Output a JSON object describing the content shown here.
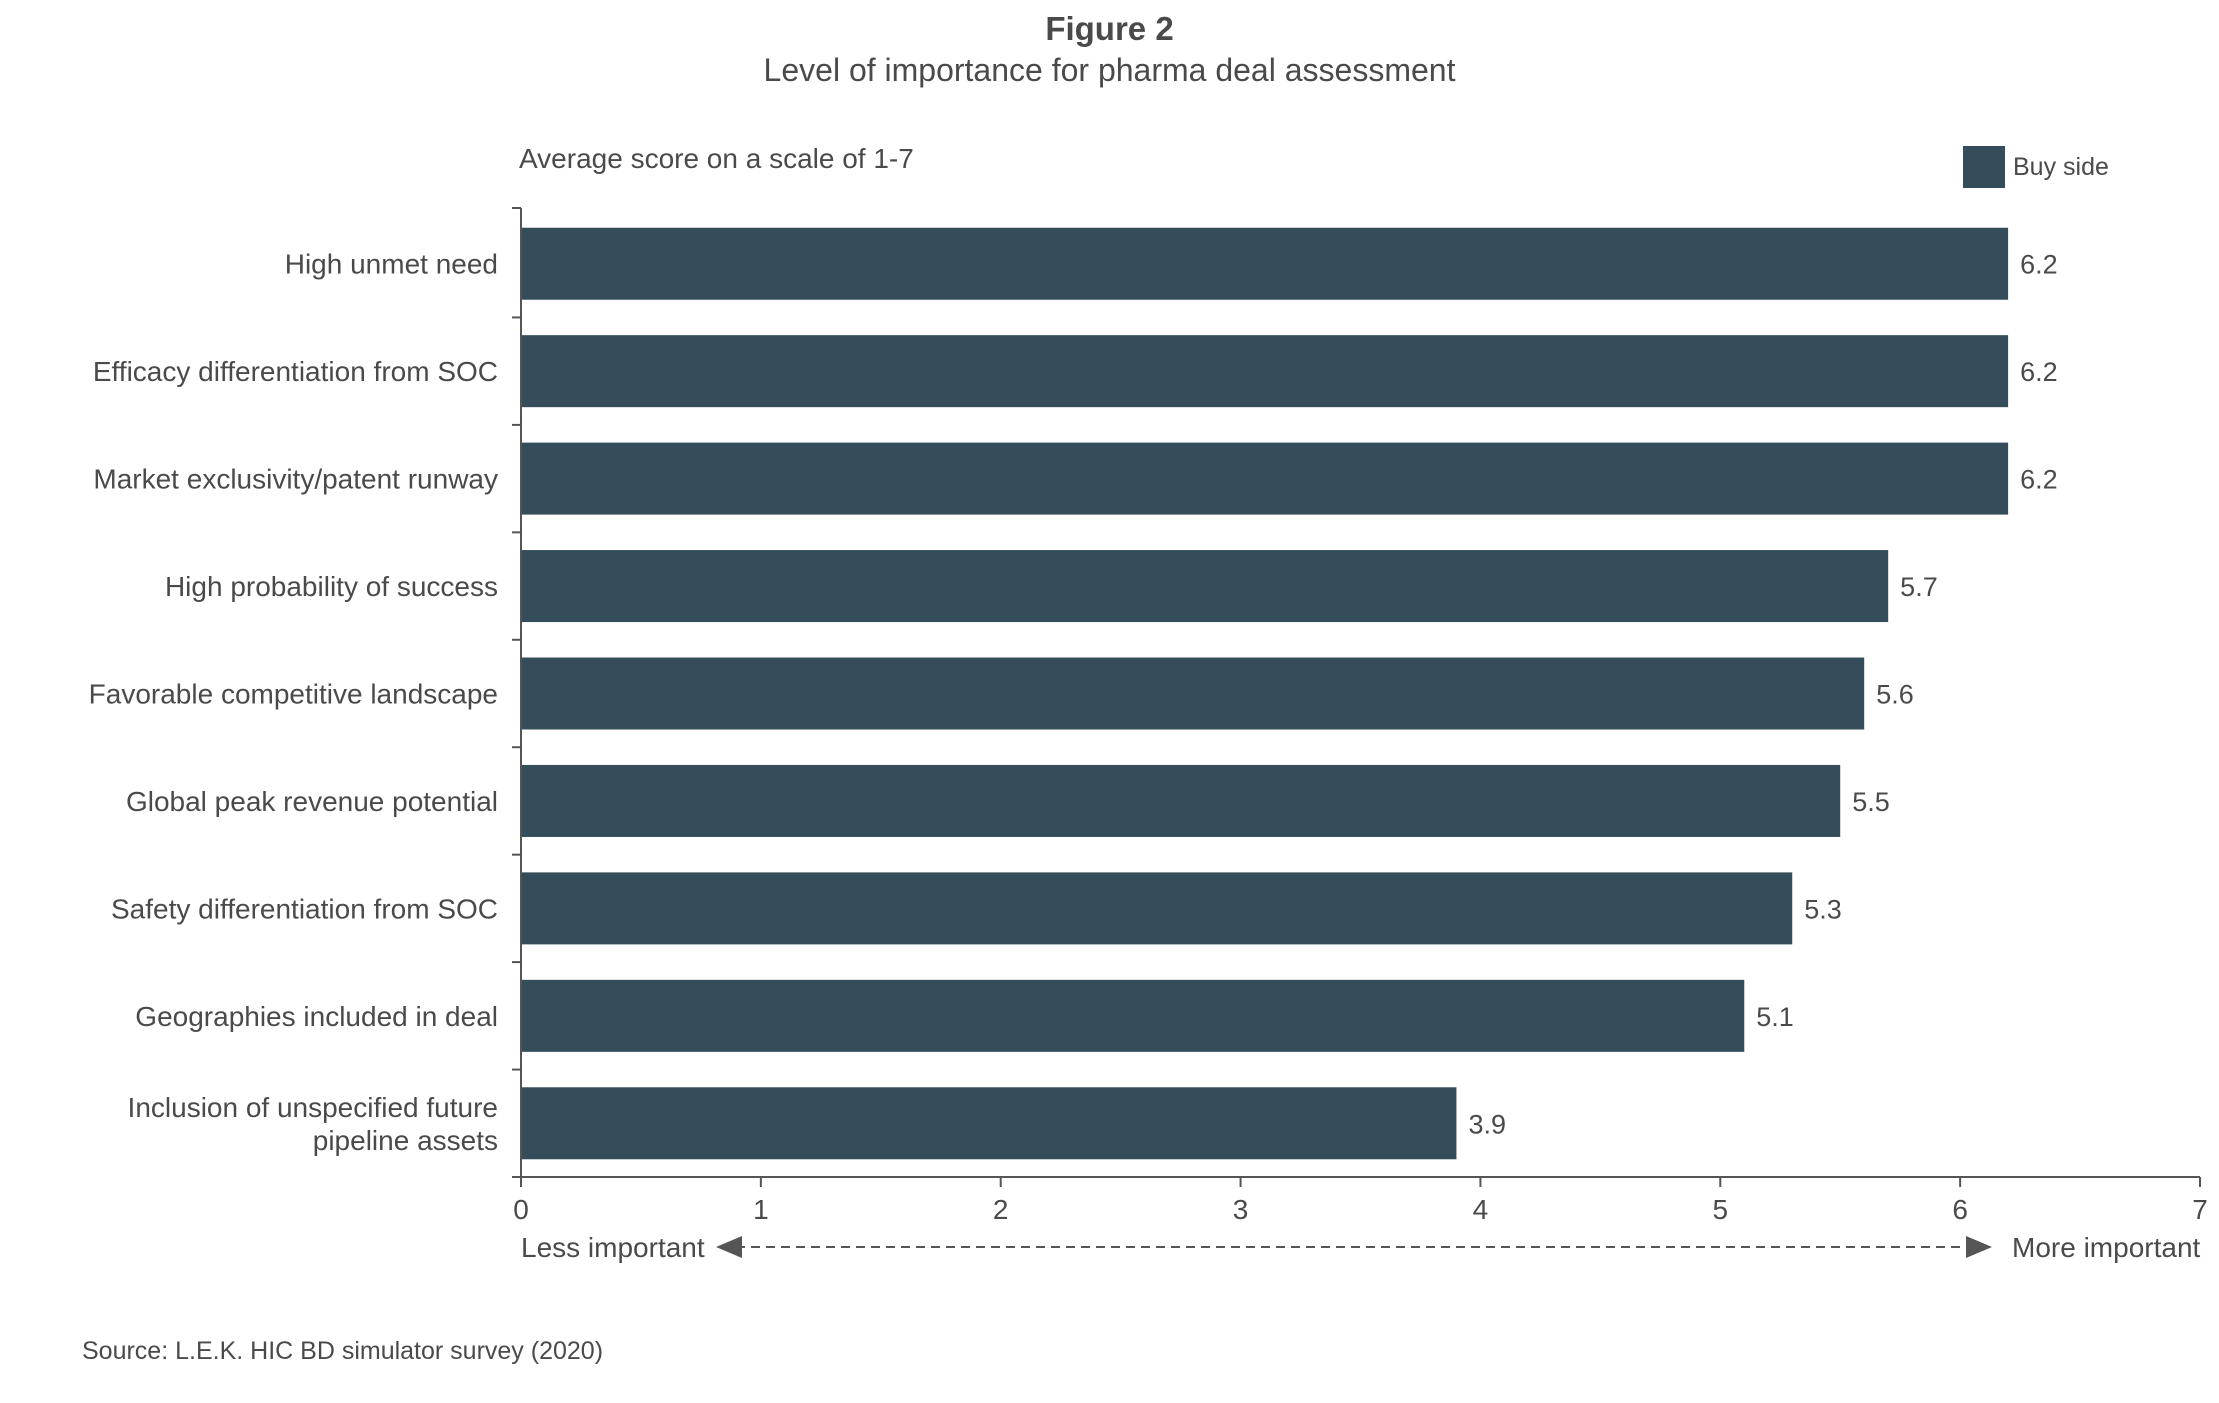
{
  "figure": {
    "title": "Figure 2",
    "subtitle": "Level of importance for pharma deal assessment",
    "y_unit_note": "Average score on a scale of 1-7",
    "source": "Source: L.E.K. HIC BD simulator survey (2020)"
  },
  "legend": {
    "label": "Buy side",
    "color": "#354c5a"
  },
  "chart_data": {
    "type": "bar",
    "orientation": "horizontal",
    "categories": [
      "High unmet need",
      "Efficacy differentiation from SOC",
      "Market exclusivity/patent runway",
      "High probability of success",
      "Favorable competitive landscape",
      "Global peak revenue potential",
      "Safety differentiation from SOC",
      "Geographies included in deal",
      "Inclusion of unspecified future pipeline assets"
    ],
    "category_lines": [
      [
        "High unmet need"
      ],
      [
        "Efficacy differentiation from SOC"
      ],
      [
        "Market exclusivity/patent runway"
      ],
      [
        "High probability of success"
      ],
      [
        "Favorable competitive landscape"
      ],
      [
        "Global peak revenue potential"
      ],
      [
        "Safety differentiation from SOC"
      ],
      [
        "Geographies included in deal"
      ],
      [
        "Inclusion of unspecified future",
        "pipeline assets"
      ]
    ],
    "series": [
      {
        "name": "Buy side",
        "values": [
          6.2,
          6.2,
          6.2,
          5.7,
          5.6,
          5.5,
          5.3,
          5.1,
          3.9
        ]
      }
    ],
    "data_labels": [
      "6.2",
      "6.2",
      "6.2",
      "5.7",
      "5.6",
      "5.5",
      "5.3",
      "5.1",
      "3.9"
    ],
    "xlim": [
      0,
      7
    ],
    "x_ticks": [
      0,
      1,
      2,
      3,
      4,
      5,
      6,
      7
    ],
    "x_scale_labels": {
      "left": "Less important",
      "right": "More important"
    },
    "grid": false,
    "legend_position": "top-right",
    "bar_color": "#354c5a"
  }
}
